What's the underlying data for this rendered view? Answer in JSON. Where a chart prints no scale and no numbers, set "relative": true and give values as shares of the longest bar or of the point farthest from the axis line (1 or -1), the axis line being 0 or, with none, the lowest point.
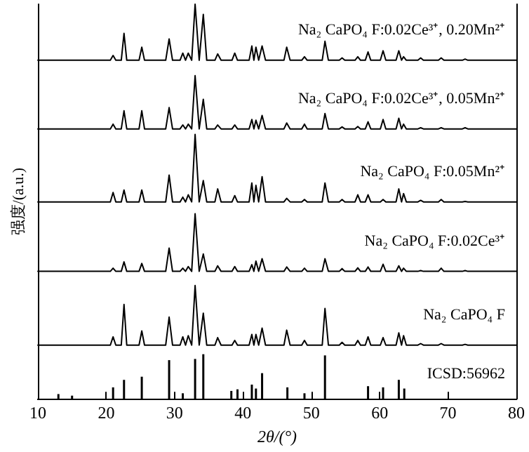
{
  "chart_data": {
    "type": "line",
    "xlabel": "2θ/(°)",
    "ylabel": "强度/(a.u.)",
    "relative": true,
    "marker": "none",
    "line_style": "solid",
    "xlim": [
      10,
      80
    ],
    "xticks": [
      10,
      20,
      30,
      40,
      50,
      60,
      70,
      80
    ],
    "x": [
      10,
      20.6,
      21.0,
      21.4,
      22.2,
      22.6,
      23.0,
      24.8,
      25.2,
      25.6,
      28.7,
      29.2,
      29.7,
      30.8,
      31.2,
      31.6,
      32.0,
      32.5,
      33.0,
      33.6,
      34.2,
      34.7,
      35.9,
      36.3,
      36.8,
      38.4,
      38.8,
      39.2,
      40.9,
      41.3,
      41.6,
      41.9,
      42.3,
      42.8,
      43.3,
      46.0,
      46.4,
      46.9,
      48.6,
      49.0,
      49.4,
      51.6,
      52.0,
      52.5,
      54.1,
      54.5,
      54.9,
      56.4,
      56.8,
      57.2,
      57.9,
      58.3,
      58.7,
      60.1,
      60.5,
      60.9,
      62.4,
      62.8,
      63.2,
      63.5,
      63.9,
      65.6,
      66.0,
      66.4,
      68.6,
      69.0,
      69.4,
      72.1,
      72.5,
      72.9,
      80
    ],
    "series": [
      {
        "name": "Na₂ CaPO₄ F:0.02Ce³⁺, 0.20Mn²⁺",
        "color": "#000000",
        "values": [
          0.858,
          0.858,
          0.87,
          0.858,
          0.858,
          0.926,
          0.858,
          0.858,
          0.891,
          0.858,
          0.858,
          0.912,
          0.858,
          0.858,
          0.876,
          0.858,
          0.876,
          0.858,
          1.0,
          0.858,
          0.974,
          0.858,
          0.858,
          0.874,
          0.858,
          0.858,
          0.876,
          0.858,
          0.858,
          0.894,
          0.858,
          0.891,
          0.858,
          0.894,
          0.858,
          0.858,
          0.891,
          0.858,
          0.858,
          0.867,
          0.858,
          0.858,
          0.906,
          0.858,
          0.858,
          0.864,
          0.858,
          0.858,
          0.867,
          0.858,
          0.858,
          0.879,
          0.858,
          0.858,
          0.882,
          0.858,
          0.858,
          0.882,
          0.858,
          0.867,
          0.858,
          0.858,
          0.864,
          0.858,
          0.858,
          0.864,
          0.858,
          0.858,
          0.861,
          0.858,
          0.858
        ]
      },
      {
        "name": "Na₂ CaPO₄ F:0.02Ce³⁺, 0.05Mn²⁺",
        "color": "#000000",
        "values": [
          0.684,
          0.684,
          0.696,
          0.684,
          0.684,
          0.73,
          0.684,
          0.684,
          0.73,
          0.684,
          0.684,
          0.738,
          0.684,
          0.684,
          0.694,
          0.684,
          0.696,
          0.684,
          0.819,
          0.684,
          0.759,
          0.684,
          0.684,
          0.694,
          0.684,
          0.684,
          0.694,
          0.684,
          0.684,
          0.708,
          0.684,
          0.706,
          0.684,
          0.718,
          0.684,
          0.684,
          0.699,
          0.684,
          0.684,
          0.696,
          0.684,
          0.684,
          0.723,
          0.684,
          0.684,
          0.689,
          0.684,
          0.684,
          0.69,
          0.684,
          0.684,
          0.702,
          0.684,
          0.684,
          0.708,
          0.684,
          0.684,
          0.711,
          0.684,
          0.696,
          0.684,
          0.684,
          0.687,
          0.684,
          0.684,
          0.687,
          0.684,
          0.684,
          0.687,
          0.684,
          0.684
        ]
      },
      {
        "name": "Na₂ CaPO₄ F:0.05Mn²⁺",
        "color": "#000000",
        "values": [
          0.499,
          0.499,
          0.523,
          0.499,
          0.499,
          0.529,
          0.499,
          0.499,
          0.529,
          0.499,
          0.499,
          0.567,
          0.499,
          0.499,
          0.511,
          0.499,
          0.517,
          0.499,
          0.67,
          0.499,
          0.553,
          0.499,
          0.499,
          0.532,
          0.499,
          0.499,
          0.515,
          0.499,
          0.499,
          0.547,
          0.499,
          0.541,
          0.499,
          0.563,
          0.499,
          0.499,
          0.508,
          0.499,
          0.499,
          0.505,
          0.499,
          0.499,
          0.547,
          0.499,
          0.499,
          0.505,
          0.499,
          0.499,
          0.517,
          0.499,
          0.499,
          0.517,
          0.499,
          0.499,
          0.505,
          0.499,
          0.499,
          0.532,
          0.499,
          0.52,
          0.499,
          0.499,
          0.503,
          0.499,
          0.499,
          0.505,
          0.499,
          0.499,
          0.5,
          0.499,
          0.499
        ]
      },
      {
        "name": "Na₂ CaPO₄ F:0.02Ce³⁺",
        "color": "#000000",
        "values": [
          0.323,
          0.323,
          0.331,
          0.323,
          0.323,
          0.347,
          0.323,
          0.323,
          0.343,
          0.323,
          0.323,
          0.382,
          0.323,
          0.323,
          0.331,
          0.323,
          0.335,
          0.323,
          0.469,
          0.323,
          0.367,
          0.323,
          0.323,
          0.337,
          0.323,
          0.323,
          0.335,
          0.323,
          0.323,
          0.34,
          0.323,
          0.349,
          0.323,
          0.355,
          0.323,
          0.323,
          0.334,
          0.323,
          0.323,
          0.331,
          0.323,
          0.323,
          0.355,
          0.323,
          0.323,
          0.33,
          0.323,
          0.323,
          0.332,
          0.323,
          0.323,
          0.334,
          0.323,
          0.323,
          0.341,
          0.323,
          0.323,
          0.337,
          0.323,
          0.331,
          0.323,
          0.323,
          0.325,
          0.323,
          0.323,
          0.331,
          0.323,
          0.323,
          0.325,
          0.323,
          0.323
        ]
      },
      {
        "name": "Na₂ CaPO₄ F",
        "color": "#000000",
        "values": [
          0.136,
          0.136,
          0.157,
          0.136,
          0.136,
          0.239,
          0.136,
          0.136,
          0.172,
          0.136,
          0.136,
          0.207,
          0.136,
          0.136,
          0.157,
          0.136,
          0.16,
          0.136,
          0.287,
          0.136,
          0.217,
          0.136,
          0.136,
          0.155,
          0.136,
          0.136,
          0.148,
          0.136,
          0.136,
          0.163,
          0.136,
          0.163,
          0.136,
          0.179,
          0.136,
          0.136,
          0.174,
          0.136,
          0.136,
          0.148,
          0.136,
          0.136,
          0.229,
          0.136,
          0.136,
          0.143,
          0.136,
          0.136,
          0.148,
          0.136,
          0.136,
          0.157,
          0.136,
          0.136,
          0.155,
          0.136,
          0.136,
          0.167,
          0.136,
          0.16,
          0.136,
          0.136,
          0.14,
          0.136,
          0.136,
          0.14,
          0.136,
          0.136,
          0.138,
          0.136,
          0.136
        ]
      },
      {
        "name": "ICSD:56962",
        "type": "bar",
        "color": "#000000",
        "x": [
          13.0,
          15.0,
          21.0,
          22.6,
          25.2,
          29.2,
          31.2,
          33.0,
          34.2,
          38.3,
          39.2,
          41.3,
          41.9,
          42.8,
          46.5,
          49.0,
          52.0,
          58.3,
          60.5,
          62.8,
          63.6
        ],
        "values": [
          0.012,
          0.008,
          0.029,
          0.048,
          0.056,
          0.098,
          0.014,
          0.101,
          0.113,
          0.02,
          0.024,
          0.036,
          0.026,
          0.065,
          0.029,
          0.014,
          0.11,
          0.032,
          0.029,
          0.048,
          0.026
        ]
      }
    ]
  }
}
